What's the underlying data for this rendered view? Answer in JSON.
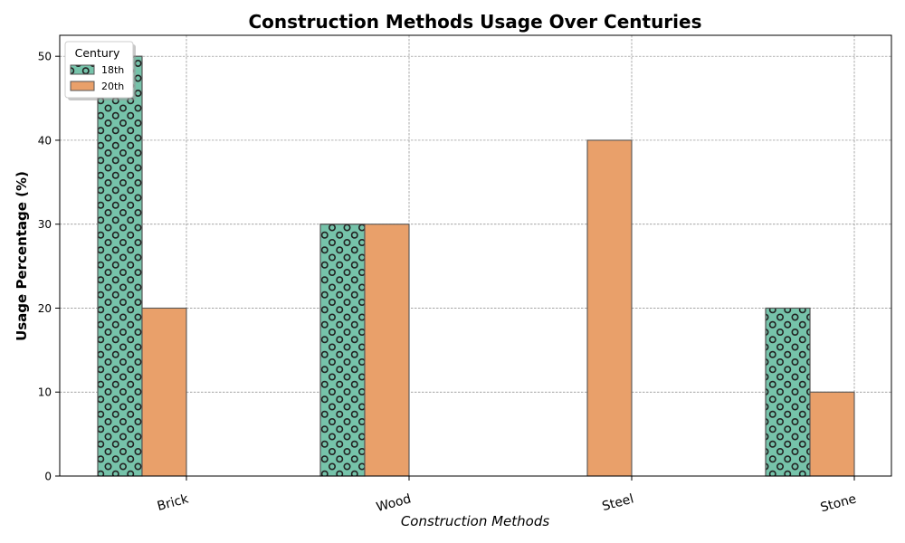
{
  "chart_data": {
    "type": "bar",
    "title": "Construction Methods Usage Over Centuries",
    "xlabel": "Construction Methods",
    "ylabel": "Usage Percentage (%)",
    "categories": [
      "Brick",
      "Wood",
      "Steel",
      "Stone"
    ],
    "series": [
      {
        "name": "18th",
        "values": [
          50,
          30,
          0,
          20
        ],
        "color": "#76c3aa",
        "pattern": "circles"
      },
      {
        "name": "20th",
        "values": [
          20,
          30,
          40,
          10
        ],
        "color": "#e9a06a",
        "pattern": "none"
      }
    ],
    "ylim": [
      0,
      52.5
    ],
    "yticks": [
      0,
      10,
      20,
      30,
      40,
      50
    ],
    "grid": true,
    "legend": {
      "title": "Century",
      "placement": "top-left"
    }
  }
}
